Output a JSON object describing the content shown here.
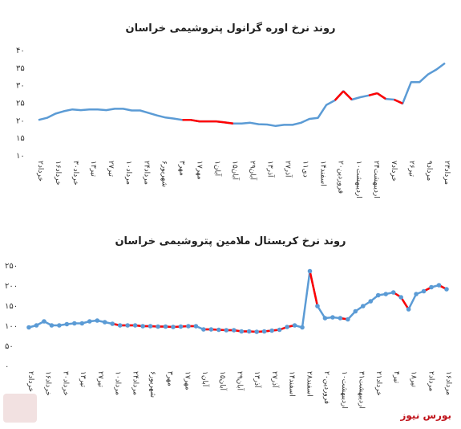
{
  "colors": {
    "line": "#5b9bd5",
    "highlight": "#ff0000",
    "dot": "#5b9bd5",
    "brand": "#c0141c"
  },
  "brand": "بورس نیوز",
  "chart_data": [
    {
      "type": "line",
      "title": "روند نرخ اوره گرانول پتروشیمی خراسان",
      "ylim": [
        10,
        40
      ],
      "yticks": [
        "۱۰",
        "۱۵",
        "۲۰",
        "۲۵",
        "۳۰",
        "۳۵",
        "۴۰"
      ],
      "ytick_values": [
        10,
        15,
        20,
        25,
        30,
        35,
        40
      ],
      "categories": [
        "۲خرداد",
        "۱۶خرداد",
        "۳۰خرداد",
        "۱۳تیر",
        "۲۷تیر",
        "۱۰مرداد",
        "۲۴مرداد",
        "۶شهریور",
        "۳مهر",
        "۱۷مهر",
        "۱آبان",
        "۱۵آبان",
        "۲۹آبان",
        "۱۳آذر",
        "۲۷آذر",
        "۱۱دی",
        "۱۴اسفند",
        "۲۰فروردین",
        "۱۰اردیبهشت",
        "۲۴اردیبهشت",
        "۷خرداد",
        "۲۶تیر",
        "۹مرداد",
        "۲۳مرداد"
      ],
      "x": [
        0,
        1,
        2,
        3,
        4,
        5,
        6,
        7,
        8,
        9,
        10,
        11,
        12,
        13,
        14,
        15,
        16,
        17,
        18,
        19,
        20,
        21,
        22,
        23,
        24,
        25,
        26,
        27,
        28,
        29,
        30,
        31,
        32,
        33,
        34,
        35,
        36,
        37,
        38,
        39,
        40,
        41,
        42,
        43,
        44,
        45,
        46,
        47,
        48
      ],
      "values": [
        20,
        20.6,
        21.8,
        22.5,
        23,
        22.8,
        23,
        23,
        22.8,
        23.2,
        23.2,
        22.7,
        22.7,
        22,
        21.3,
        20.7,
        20.4,
        20,
        20,
        19.6,
        19.6,
        19.6,
        19.3,
        19,
        19,
        19.2,
        18.8,
        18.7,
        18.3,
        18.6,
        18.6,
        19.2,
        20.3,
        20.6,
        24.3,
        25.6,
        28.2,
        25.8,
        26.5,
        27,
        27.6,
        26,
        25.8,
        24.7,
        30.8,
        30.8,
        33,
        34.4,
        36.2
      ],
      "highlight_segments": [
        [
          17,
          23
        ],
        [
          35,
          36
        ],
        [
          36,
          37
        ],
        [
          39,
          40
        ],
        [
          40,
          41
        ],
        [
          42,
          43
        ]
      ]
    },
    {
      "type": "line",
      "title": "روند نرخ کریستال ملامین پتروشیمی خراسان",
      "ylim": [
        0,
        250
      ],
      "yticks": [
        "۰",
        "۵۰",
        "۱۰۰",
        "۱۵۰",
        "۲۰۰",
        "۲۵۰"
      ],
      "ytick_values": [
        0,
        50,
        100,
        150,
        200,
        250
      ],
      "categories": [
        "۲خرداد",
        "۱۶خرداد",
        "۳۰خرداد",
        "۱۳تیر",
        "۲۷تیر",
        "۱۰مرداد",
        "۲۴مرداد",
        "۶شهریور",
        "۳مهر",
        "۱۷مهر",
        "۱آبان",
        "۱۵آبان",
        "۲۹آبان",
        "۱۳آذر",
        "۲۷آذر",
        "۱۴اسفند",
        "۲۸اسفند",
        "۲۰فروردین",
        "۱۰اردیبهشت",
        "۳۱اردیبهشت",
        "۲۱خرداد",
        "۴تیر",
        "۱۸تیر",
        "۲مرداد",
        "۱۶مرداد"
      ],
      "x": [
        0,
        1,
        2,
        3,
        4,
        5,
        6,
        7,
        8,
        9,
        10,
        11,
        12,
        13,
        14,
        15,
        16,
        17,
        18,
        19,
        20,
        21,
        22,
        23,
        24,
        25,
        26,
        27,
        28,
        29,
        30,
        31,
        32,
        33,
        34,
        35,
        36,
        37,
        38,
        39,
        40,
        41,
        42,
        43,
        44,
        45,
        46,
        47,
        48,
        49,
        50,
        51,
        52,
        53,
        54,
        55
      ],
      "values": [
        95,
        100,
        110,
        100,
        100,
        103,
        105,
        105,
        110,
        112,
        108,
        104,
        100,
        100,
        100,
        98,
        98,
        97,
        97,
        96,
        97,
        98,
        98,
        90,
        90,
        89,
        88,
        88,
        85,
        85,
        84,
        85,
        87,
        89,
        96,
        100,
        95,
        235,
        148,
        118,
        120,
        118,
        115,
        135,
        148,
        160,
        175,
        178,
        182,
        170,
        140,
        178,
        185,
        195,
        200,
        190
      ],
      "extra_points": [
        [
          53,
          198
        ],
        [
          54,
          202
        ],
        [
          55,
          160
        ]
      ],
      "highlight_segments": [
        [
          11,
          22
        ],
        [
          23,
          35
        ],
        [
          37,
          38
        ],
        [
          41,
          42
        ],
        [
          48,
          49
        ],
        [
          49,
          50
        ],
        [
          52,
          53
        ],
        [
          54,
          55
        ]
      ]
    }
  ]
}
